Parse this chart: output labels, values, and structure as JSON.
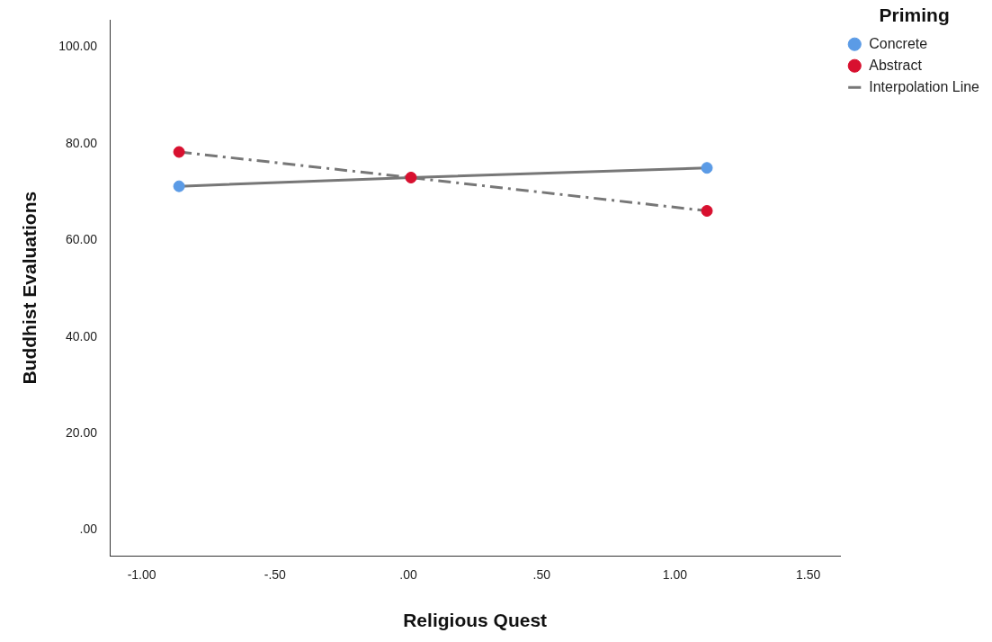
{
  "chart_data": {
    "type": "scatter",
    "xlabel": "Religious Quest",
    "ylabel": "Buddhist Evaluations",
    "legend_title": "Priming",
    "legend": "top right",
    "grid": false,
    "xlim": [
      -1.12,
      1.62
    ],
    "xticks": [
      {
        "value": -1,
        "label": "-1.00"
      },
      {
        "value": -0.5,
        "label": "-.50"
      },
      {
        "value": 0,
        "label": ".00"
      },
      {
        "value": 0.5,
        "label": ".50"
      },
      {
        "value": 1,
        "label": "1.00"
      },
      {
        "value": 1.5,
        "label": "1.50"
      }
    ],
    "ylim": [
      -5.3,
      105.6
    ],
    "yticks": [
      {
        "value": 0,
        "label": ".00"
      },
      {
        "value": 20,
        "label": "20.00"
      },
      {
        "value": 40,
        "label": "40.00"
      },
      {
        "value": 60,
        "label": "60.00"
      },
      {
        "value": 80,
        "label": "80.00"
      },
      {
        "value": 100,
        "label": "100.00"
      }
    ],
    "series": [
      {
        "name": "Concrete",
        "type": "scatter",
        "marker": "circle",
        "color": "#5b9be6",
        "x": [
          -0.86,
          1.12
        ],
        "values": [
          71.2,
          75.0
        ]
      },
      {
        "name": "Abstract",
        "type": "scatter",
        "marker": "circle",
        "color": "#d8102f",
        "x": [
          -0.86,
          0.01,
          1.12
        ],
        "values": [
          78.3,
          73.0,
          66.1
        ]
      },
      {
        "name": "Interpolation Line",
        "type": "line",
        "marker": "none",
        "color": "#777777",
        "line_style": "solid",
        "x": [
          -0.86,
          0.01,
          1.12
        ],
        "values": [
          71.2,
          73.0,
          75.0
        ]
      },
      {
        "type": "line",
        "marker": "none",
        "color": "#777777",
        "line_style": "dashed",
        "x": [
          -0.86,
          0.01,
          1.12
        ],
        "values": [
          78.3,
          73.0,
          66.1
        ]
      }
    ]
  }
}
